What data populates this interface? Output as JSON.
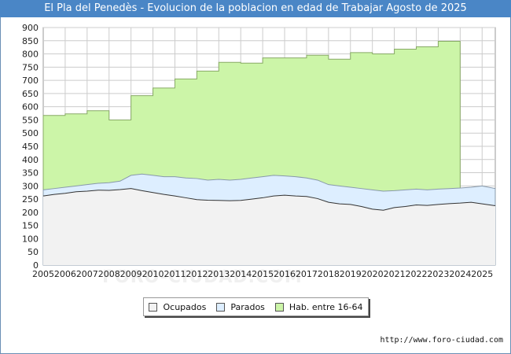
{
  "title": "El Pla del Penedès - Evolucion de la poblacion en edad de Trabajar Agosto de 2025",
  "watermark": "FORO-CIUDAD.COM",
  "url": "http://www.foro-ciudad.com",
  "colors": {
    "title_bg": "#4a86c6",
    "hab_fill": "#ccf5a8",
    "hab_line": "#88aa66",
    "parados_fill": "#ddeeff",
    "parados_line": "#8899aa",
    "ocupados_fill": "#f2f2f2",
    "ocupados_line": "#333333",
    "grid": "#cccccc"
  },
  "chart_data": {
    "type": "area",
    "title": "El Pla del Penedès - Evolucion de la poblacion en edad de Trabajar Agosto de 2025",
    "xlabel": "",
    "ylabel": "",
    "xlim": [
      2005,
      2025.6
    ],
    "ylim": [
      0,
      900
    ],
    "yticks": [
      0,
      50,
      100,
      150,
      200,
      250,
      300,
      350,
      400,
      450,
      500,
      550,
      600,
      650,
      700,
      750,
      800,
      850,
      900
    ],
    "xticks": [
      2005,
      2006,
      2007,
      2008,
      2009,
      2010,
      2011,
      2012,
      2013,
      2014,
      2015,
      2016,
      2017,
      2018,
      2019,
      2020,
      2021,
      2022,
      2023,
      2024,
      2025
    ],
    "grid": true,
    "legend_position": "bottom",
    "legend": [
      {
        "name": "Ocupados",
        "color": "#f2f2f2"
      },
      {
        "name": "Parados",
        "color": "#ddeeff"
      },
      {
        "name": "Hab. entre 16-64",
        "color": "#ccf5a8"
      }
    ],
    "hab_entre_16_64": {
      "years": [
        2005,
        2006,
        2007,
        2008,
        2009,
        2010,
        2011,
        2012,
        2013,
        2014,
        2015,
        2016,
        2017,
        2018,
        2019,
        2020,
        2021,
        2022,
        2023
      ],
      "values": [
        567,
        573,
        585,
        550,
        642,
        671,
        705,
        735,
        768,
        765,
        785,
        785,
        795,
        780,
        805,
        800,
        818,
        827,
        848
      ],
      "end_year": 2024
    },
    "parados": {
      "x": [
        2005.0,
        2005.5,
        2006.0,
        2006.5,
        2007.0,
        2007.5,
        2008.0,
        2008.5,
        2009.0,
        2009.5,
        2010.0,
        2010.5,
        2011.0,
        2011.5,
        2012.0,
        2012.5,
        2013.0,
        2013.5,
        2014.0,
        2014.5,
        2015.0,
        2015.5,
        2016.0,
        2016.5,
        2017.0,
        2017.5,
        2018.0,
        2018.5,
        2019.0,
        2019.5,
        2020.0,
        2020.5,
        2021.0,
        2021.5,
        2022.0,
        2022.5,
        2023.0,
        2023.5,
        2024.0,
        2024.5,
        2025.0,
        2025.6
      ],
      "values": [
        285,
        290,
        295,
        300,
        305,
        310,
        312,
        318,
        340,
        345,
        340,
        335,
        335,
        330,
        328,
        322,
        325,
        322,
        325,
        330,
        335,
        340,
        338,
        335,
        330,
        322,
        305,
        300,
        295,
        290,
        285,
        280,
        282,
        285,
        288,
        285,
        288,
        290,
        292,
        295,
        300,
        290
      ]
    },
    "ocupados": {
      "x": [
        2005.0,
        2005.5,
        2006.0,
        2006.5,
        2007.0,
        2007.5,
        2008.0,
        2008.5,
        2009.0,
        2009.5,
        2010.0,
        2010.5,
        2011.0,
        2011.5,
        2012.0,
        2012.5,
        2013.0,
        2013.5,
        2014.0,
        2014.5,
        2015.0,
        2015.5,
        2016.0,
        2016.5,
        2017.0,
        2017.5,
        2018.0,
        2018.5,
        2019.0,
        2019.5,
        2020.0,
        2020.5,
        2021.0,
        2021.5,
        2022.0,
        2022.5,
        2023.0,
        2023.5,
        2024.0,
        2024.5,
        2025.0,
        2025.6
      ],
      "values": [
        262,
        268,
        272,
        278,
        280,
        284,
        283,
        286,
        290,
        282,
        275,
        268,
        262,
        255,
        248,
        246,
        245,
        244,
        245,
        250,
        255,
        262,
        265,
        262,
        260,
        252,
        238,
        232,
        230,
        222,
        212,
        208,
        218,
        222,
        228,
        226,
        230,
        233,
        235,
        238,
        232,
        225
      ]
    }
  }
}
